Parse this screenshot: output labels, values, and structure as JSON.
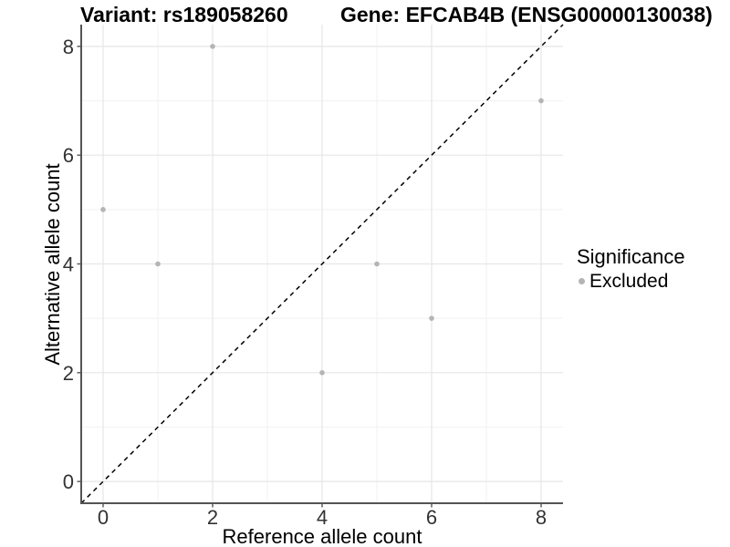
{
  "chart_data": {
    "type": "scatter",
    "title_left": "Variant: rs189058260",
    "title_right": "Gene: EFCAB4B (ENSG00000130038)",
    "xlabel": "Reference allele count",
    "ylabel": "Alternative allele count",
    "xlim": [
      -0.4,
      8.4
    ],
    "ylim": [
      -0.4,
      8.4
    ],
    "xticks": [
      0,
      2,
      4,
      6,
      8
    ],
    "yticks": [
      0,
      2,
      4,
      6,
      8
    ],
    "minor_xticks": [
      1,
      3,
      5,
      7
    ],
    "minor_yticks": [
      1,
      3,
      5,
      7
    ],
    "grid": true,
    "legend_position": "right",
    "series": [
      {
        "name": "Excluded",
        "color": "#b4b4b4",
        "points": [
          [
            0,
            5
          ],
          [
            1,
            4
          ],
          [
            2,
            8
          ],
          [
            4,
            2
          ],
          [
            5,
            4
          ],
          [
            6,
            3
          ],
          [
            8,
            7
          ]
        ]
      }
    ],
    "reference_line": {
      "description": "identity line y = x",
      "style": "dashed",
      "color": "#000000",
      "from": [
        -0.4,
        -0.4
      ],
      "to": [
        8.4,
        8.4
      ]
    },
    "legend": {
      "title": "Significance",
      "entries": [
        {
          "label": "Excluded",
          "color": "#b4b4b4"
        }
      ]
    },
    "colors": {
      "background": "#ffffff",
      "major_grid": "#e6e6e6",
      "minor_grid": "#f2f2f2",
      "axis": "#545454",
      "tick_label": "#333333",
      "point": "#b4b4b4"
    }
  }
}
